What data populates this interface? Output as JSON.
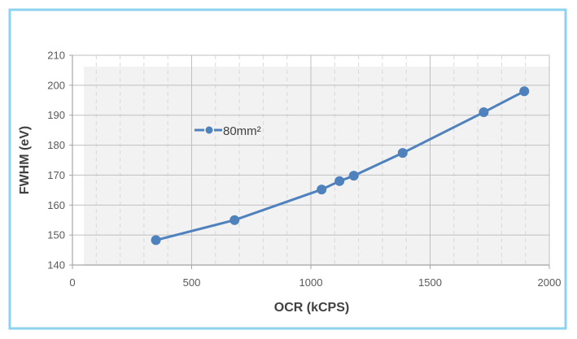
{
  "chart_data": {
    "type": "line",
    "title": "",
    "xlabel": "OCR (kCPS)",
    "ylabel": "FWHM (eV)",
    "xlim": [
      0,
      2000
    ],
    "ylim": [
      140,
      210
    ],
    "xticks": [
      0,
      500,
      1000,
      1500,
      2000
    ],
    "yticks": [
      140,
      150,
      160,
      170,
      180,
      190,
      200,
      210
    ],
    "xtick_labels": [
      "0",
      "500",
      "1000",
      "1500",
      "2000"
    ],
    "ytick_labels": [
      "140",
      "150",
      "160",
      "170",
      "180",
      "190",
      "200",
      "210"
    ],
    "grid": true,
    "legend_position": "upper-left inside plot",
    "series": [
      {
        "name": "80mm²",
        "color": "#4F81BD",
        "marker": "circle",
        "x": [
          350,
          680,
          1045,
          1120,
          1180,
          1385,
          1725,
          1895
        ],
        "y": [
          148.3,
          155.0,
          165.2,
          168.0,
          169.8,
          177.4,
          191.0,
          198.0
        ]
      }
    ]
  }
}
